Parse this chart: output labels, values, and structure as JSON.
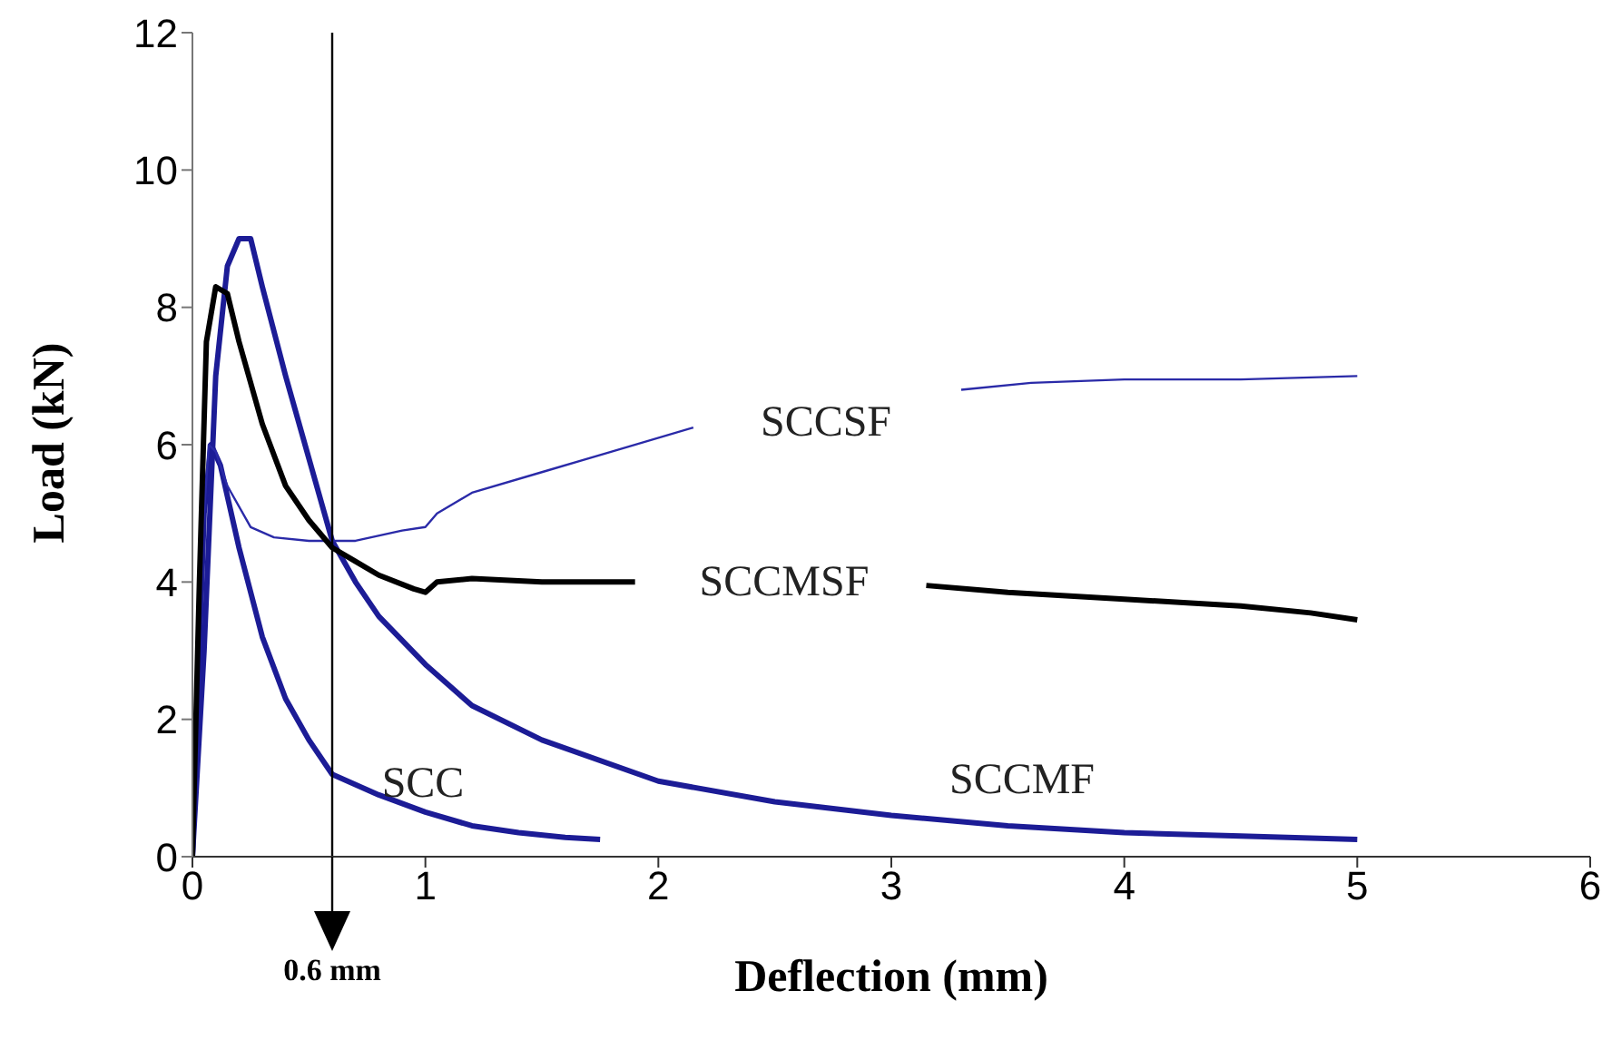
{
  "chart_data": {
    "type": "line",
    "xlabel": "Deflection (mm)",
    "ylabel": "Load (kN)",
    "xlim": [
      0,
      6
    ],
    "xticks": [
      0,
      1,
      2,
      3,
      4,
      5,
      6
    ],
    "ylim": [
      0,
      12
    ],
    "yticks": [
      0,
      2,
      4,
      6,
      8,
      10,
      12
    ],
    "grid": false,
    "legend": false,
    "marker": "none",
    "line_style": "solid",
    "ref_lines": [
      {
        "axis": "x",
        "value": 0.6,
        "label": "0.6 mm",
        "color": "#000000"
      }
    ],
    "series": [
      {
        "name": "SCC",
        "color": "#1c1c96",
        "x": [
          0,
          0.02,
          0.05,
          0.08,
          0.12,
          0.2,
          0.3,
          0.4,
          0.5,
          0.6,
          0.8,
          1.0,
          1.2,
          1.4,
          1.6,
          1.75
        ],
        "values": [
          0,
          2,
          5,
          6,
          5.7,
          4.5,
          3.2,
          2.3,
          1.7,
          1.2,
          0.9,
          0.65,
          0.45,
          0.35,
          0.28,
          0.25
        ]
      },
      {
        "name": "SCCMF",
        "color": "#1c1c96",
        "x": [
          0,
          0.05,
          0.1,
          0.15,
          0.2,
          0.25,
          0.3,
          0.4,
          0.5,
          0.6,
          0.7,
          0.8,
          1.0,
          1.2,
          1.5,
          2,
          2.5,
          3,
          3.5,
          4,
          4.5,
          5
        ],
        "values": [
          0,
          3,
          7,
          8.6,
          9,
          9,
          8.3,
          7,
          5.8,
          4.6,
          4,
          3.5,
          2.8,
          2.2,
          1.7,
          1.1,
          0.8,
          0.6,
          0.45,
          0.35,
          0.3,
          0.25
        ]
      },
      {
        "name": "SCCSF",
        "color": "#2a2aa8",
        "x": [
          0,
          0.03,
          0.07,
          0.1,
          0.15,
          0.25,
          0.35,
          0.5,
          0.7,
          0.9,
          1.0,
          1.05,
          1.2,
          1.5,
          1.8,
          2.15,
          2.7,
          3.3,
          3.6,
          4,
          4.5,
          5
        ],
        "values": [
          0,
          4,
          6,
          5.9,
          5.4,
          4.8,
          4.65,
          4.6,
          4.6,
          4.75,
          4.8,
          5.0,
          5.3,
          5.6,
          5.9,
          6.25,
          null,
          6.8,
          6.9,
          6.95,
          6.95,
          7.0
        ]
      },
      {
        "name": "SCCMSF",
        "color": "#000000",
        "x": [
          0,
          0.03,
          0.06,
          0.1,
          0.15,
          0.2,
          0.3,
          0.4,
          0.5,
          0.6,
          0.7,
          0.8,
          0.95,
          1.0,
          1.05,
          1.2,
          1.5,
          1.9,
          2.5,
          3.15,
          3.5,
          4,
          4.5,
          4.8,
          5
        ],
        "values": [
          0,
          4,
          7.5,
          8.3,
          8.2,
          7.5,
          6.3,
          5.4,
          4.9,
          4.5,
          4.3,
          4.1,
          3.9,
          3.85,
          4.0,
          4.05,
          4.0,
          4.0,
          null,
          3.95,
          3.85,
          3.75,
          3.65,
          3.55,
          3.45
        ]
      }
    ]
  }
}
